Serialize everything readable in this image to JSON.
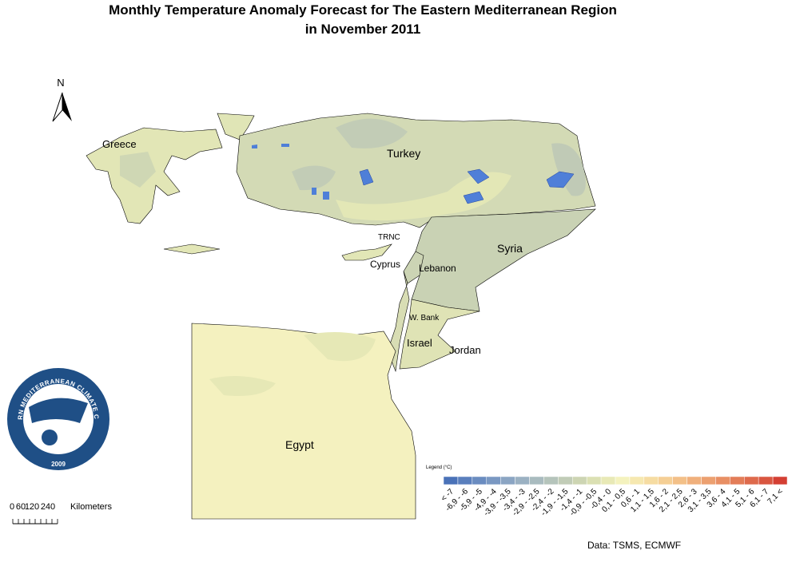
{
  "title": {
    "line1": "Monthly Temperature Anomaly Forecast for  The Eastern Mediterranean Region",
    "line2": "in November 2011"
  },
  "north_arrow": "N",
  "labels": {
    "greece": "Greece",
    "turkey": "Turkey",
    "trnc": "TRNC",
    "cyprus": "Cyprus",
    "syria": "Syria",
    "lebanon": "Lebanon",
    "west_bank": "W. Bank",
    "israel": "Israel",
    "jordan": "Jordan",
    "egypt": "Egypt"
  },
  "logo": {
    "name": "EASTERN MEDITERRANEAN CLIMATE CENTRE",
    "year": "2009"
  },
  "scale_bar": {
    "ticks": [
      "0",
      "60",
      "120",
      "240"
    ],
    "unit": "Kilometers"
  },
  "legend": {
    "title": "Legend (°C)",
    "items": [
      {
        "label": "< -7",
        "color": "#4a72b8"
      },
      {
        "label": "-6,9 - -6",
        "color": "#5a7fbd"
      },
      {
        "label": "-5,9 - -5",
        "color": "#6a8cc0"
      },
      {
        "label": "-4,9 - -4",
        "color": "#7a98c2"
      },
      {
        "label": "-3,9 - -3,5",
        "color": "#8ba5c3"
      },
      {
        "label": "-3,4 - -3",
        "color": "#9bb1c2"
      },
      {
        "label": "-2,9 - -2,5",
        "color": "#a9bbbf"
      },
      {
        "label": "-2,4 - -2",
        "color": "#b5c4bb"
      },
      {
        "label": "-1,9 - -1,5",
        "color": "#c1ccb7"
      },
      {
        "label": "-1,4 - -1",
        "color": "#cdd5b3"
      },
      {
        "label": "-0,9 - -0,5",
        "color": "#dbe0b3"
      },
      {
        "label": "-0,4 - 0",
        "color": "#e8e9b6"
      },
      {
        "label": "0,1 - 0,5",
        "color": "#f4f2be"
      },
      {
        "label": "0,6 - 1",
        "color": "#f6e8b0"
      },
      {
        "label": "1,1 - 1,5",
        "color": "#f6dca2"
      },
      {
        "label": "1,6 - 2",
        "color": "#f5cf95"
      },
      {
        "label": "2,1 - 2,5",
        "color": "#f3c088"
      },
      {
        "label": "2,6 - 3",
        "color": "#f0b07c"
      },
      {
        "label": "3,1 - 3,5",
        "color": "#eca070"
      },
      {
        "label": "3,6 - 4",
        "color": "#e88f64"
      },
      {
        "label": "4,1 - 5",
        "color": "#e37d58"
      },
      {
        "label": "5,1 - 6",
        "color": "#de6a4c"
      },
      {
        "label": "6,1 - 7",
        "color": "#d95640"
      },
      {
        "label": "7,1 <",
        "color": "#d43f33"
      }
    ]
  },
  "source": "Data:  TSMS, ECMWF"
}
